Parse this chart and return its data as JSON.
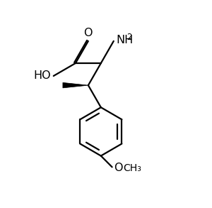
{
  "bg_color": "#ffffff",
  "line_color": "#000000",
  "line_width": 1.6,
  "figsize": [
    3.0,
    2.93
  ],
  "dpi": 100,
  "xlim": [
    0,
    10
  ],
  "ylim": [
    0,
    10
  ]
}
